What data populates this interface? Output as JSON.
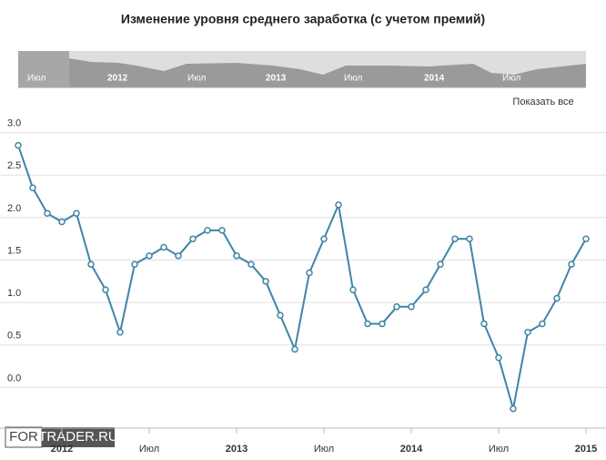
{
  "chart_data": {
    "type": "line",
    "title": "Изменение уровня среднего заработка (с учетом премий)",
    "categories": [
      null,
      null,
      null,
      "2012",
      null,
      null,
      null,
      null,
      null,
      "Июл",
      null,
      null,
      null,
      null,
      null,
      "2013",
      null,
      null,
      null,
      null,
      null,
      "Июл",
      null,
      null,
      null,
      null,
      null,
      "2014",
      null,
      null,
      null,
      null,
      null,
      "Июл",
      null,
      null,
      null,
      null,
      null,
      "2015"
    ],
    "series": [
      {
        "color": "#3f84a8",
        "values": [
          2.85,
          2.35,
          2.05,
          1.95,
          2.05,
          1.45,
          1.15,
          0.65,
          1.45,
          1.55,
          1.65,
          1.55,
          1.75,
          1.85,
          1.85,
          1.55,
          1.45,
          1.25,
          0.85,
          0.45,
          1.35,
          1.75,
          2.15,
          1.15,
          0.75,
          0.75,
          0.95,
          0.95,
          1.15,
          1.45,
          1.75,
          1.75,
          0.75,
          0.35,
          -0.25,
          0.65,
          0.75,
          1.05,
          1.45,
          1.75
        ]
      }
    ],
    "ylim": [
      -0.5,
      3.5
    ],
    "yticks": [
      {
        "value": 0,
        "label": "0.0"
      },
      0.5,
      {
        "value": 1,
        "label": "1.0"
      },
      1.5,
      {
        "value": 2,
        "label": "2.0"
      },
      2.5,
      {
        "value": 3,
        "label": "3.0"
      }
    ],
    "grid": true,
    "navigator_labels": [
      "Июл",
      "2012",
      "Июл",
      "2013",
      "Июл",
      "2014",
      "Июл"
    ],
    "reset_button": "Показать все",
    "watermark": [
      "FOR",
      "TRADER.RU"
    ]
  }
}
